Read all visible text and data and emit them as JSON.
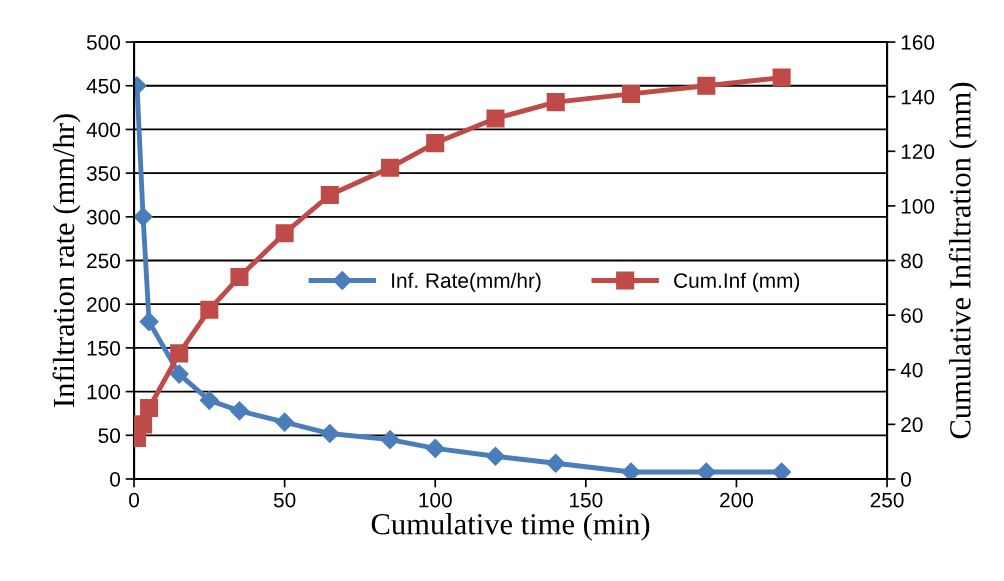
{
  "chart_data": {
    "type": "line",
    "xlabel": "Cumulative time (min)",
    "ylabel": "Infiltration rate (mm/hr)",
    "y2label": "Cumulative Infiltration (mm)",
    "x": [
      1,
      3,
      5,
      15,
      25,
      35,
      50,
      65,
      85,
      100,
      120,
      140,
      165,
      190,
      215
    ],
    "series": [
      {
        "name": "Inf. Rate(mm/hr)",
        "color": "#4a7ebb",
        "marker": "diamond",
        "values": [
          450,
          300,
          180,
          120,
          90,
          78,
          65,
          52,
          45,
          35,
          26,
          18,
          8,
          8,
          8
        ]
      },
      {
        "name": "Cum.Inf (mm)",
        "color": "#be4b48",
        "marker": "square",
        "axis": "y2",
        "values": [
          15,
          20,
          26,
          46,
          62,
          74,
          90,
          104,
          114,
          123,
          132,
          138,
          141,
          144,
          147
        ]
      }
    ],
    "xlim": [
      0,
      250
    ],
    "xticks": [
      0,
      50,
      100,
      150,
      200,
      250
    ],
    "ylim": [
      0,
      500
    ],
    "yticks": [
      0,
      50,
      100,
      150,
      200,
      250,
      300,
      350,
      400,
      450,
      500
    ],
    "y2lim": [
      0,
      160
    ],
    "y2ticks": [
      0,
      20,
      40,
      60,
      80,
      100,
      120,
      140,
      160
    ],
    "grid": "y",
    "legend": "center",
    "line_style": "solid"
  }
}
